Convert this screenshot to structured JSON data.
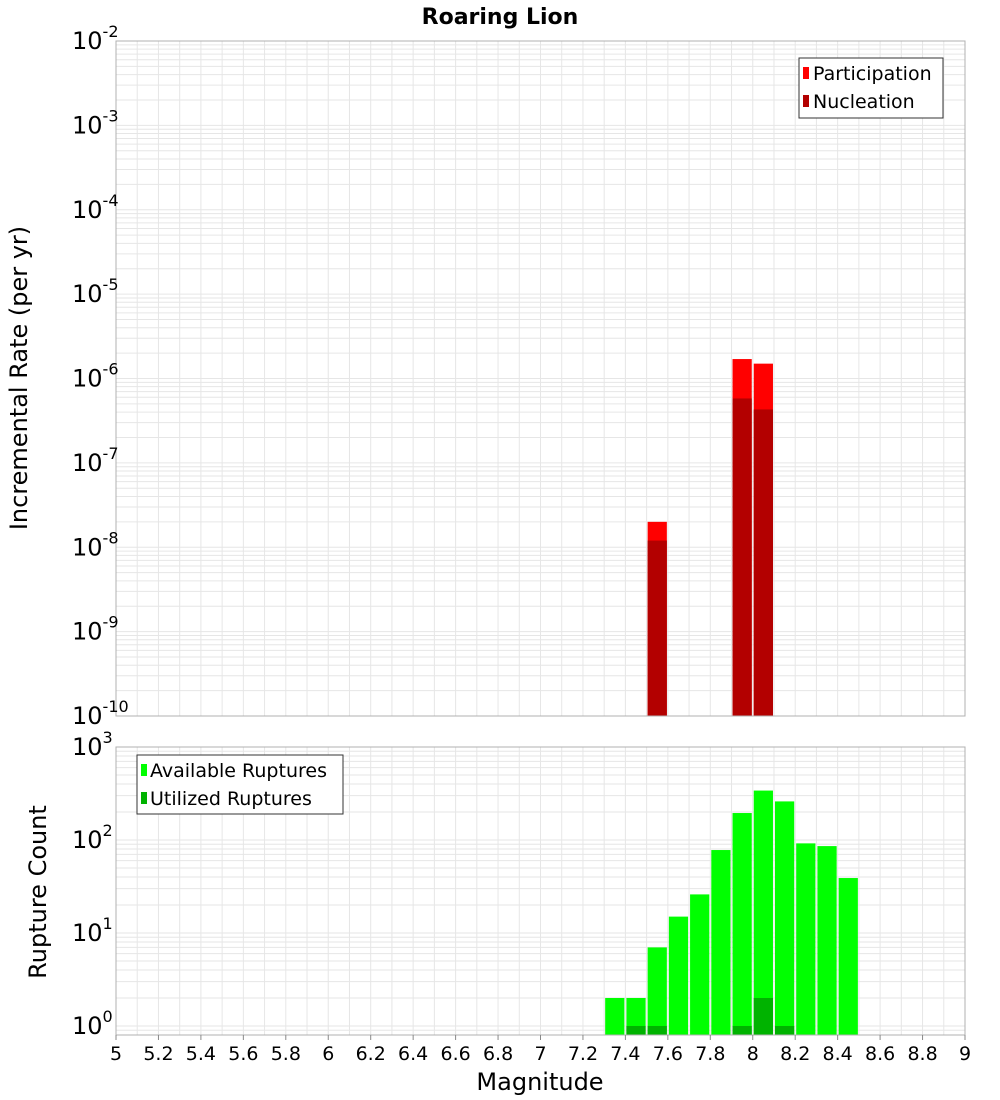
{
  "chart_data": [
    {
      "type": "bar",
      "title": "Roaring Lion",
      "xlabel": "",
      "ylabel": "Incremental Rate (per yr)",
      "yscale": "log",
      "ylim": [
        1e-10,
        0.01
      ],
      "xlim": [
        5,
        9
      ],
      "bin_width": 0.1,
      "grid": true,
      "legend_position": "top-right",
      "series": [
        {
          "name": "Participation",
          "color": "#ff0000",
          "points": [
            {
              "x": 7.55,
              "y": 2e-08
            },
            {
              "x": 7.95,
              "y": 1.7e-06
            },
            {
              "x": 8.05,
              "y": 1.5e-06
            }
          ]
        },
        {
          "name": "Nucleation",
          "color": "#b30000",
          "points": [
            {
              "x": 7.55,
              "y": 1.2e-08
            },
            {
              "x": 7.95,
              "y": 5.8e-07
            },
            {
              "x": 8.05,
              "y": 4.3e-07
            }
          ]
        }
      ]
    },
    {
      "type": "bar",
      "xlabel": "Magnitude",
      "ylabel": "Rupture Count",
      "yscale": "log",
      "ylim": [
        0.8,
        1000
      ],
      "xlim": [
        5,
        9
      ],
      "bin_width": 0.1,
      "grid": true,
      "legend_position": "top-left",
      "xticks": [
        "5",
        "5.2",
        "5.4",
        "5.6",
        "5.8",
        "6",
        "6.2",
        "6.4",
        "6.6",
        "6.8",
        "7",
        "7.2",
        "7.4",
        "7.6",
        "7.8",
        "8",
        "8.2",
        "8.4",
        "8.6",
        "8.8",
        "9"
      ],
      "series": [
        {
          "name": "Available Ruptures",
          "color": "#00ff00",
          "points": [
            {
              "x": 7.35,
              "y": 2
            },
            {
              "x": 7.45,
              "y": 2
            },
            {
              "x": 7.55,
              "y": 7
            },
            {
              "x": 7.65,
              "y": 15
            },
            {
              "x": 7.75,
              "y": 26
            },
            {
              "x": 7.85,
              "y": 78
            },
            {
              "x": 7.95,
              "y": 195
            },
            {
              "x": 8.05,
              "y": 340
            },
            {
              "x": 8.15,
              "y": 260
            },
            {
              "x": 8.25,
              "y": 92
            },
            {
              "x": 8.35,
              "y": 86
            },
            {
              "x": 8.45,
              "y": 39
            }
          ]
        },
        {
          "name": "Utilized Ruptures",
          "color": "#00b300",
          "points": [
            {
              "x": 7.45,
              "y": 1
            },
            {
              "x": 7.55,
              "y": 1
            },
            {
              "x": 7.95,
              "y": 1
            },
            {
              "x": 8.05,
              "y": 2
            },
            {
              "x": 8.15,
              "y": 1
            }
          ]
        }
      ]
    }
  ]
}
